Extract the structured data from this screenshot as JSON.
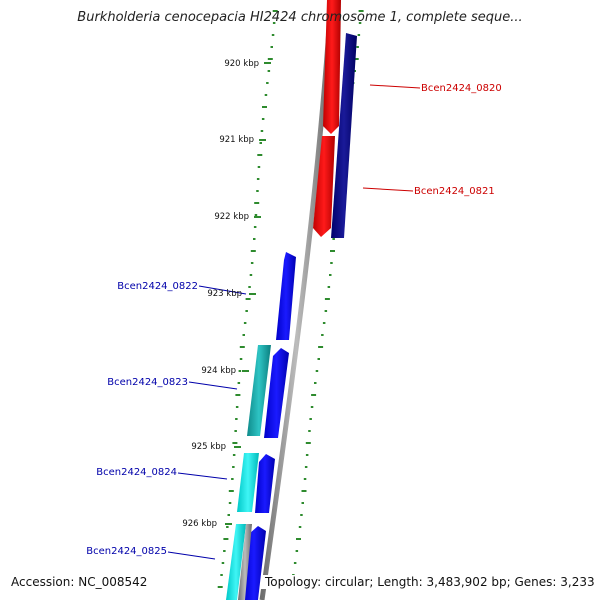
{
  "title": "Burkholderia cenocepacia HI2424 chromosome 1, complete seque...",
  "accession": "Accession: NC_008542",
  "summary": "Topology: circular; Length: 3,483,902 bp; Genes: 3,233",
  "ticks": [
    {
      "label": "920 kbp"
    },
    {
      "label": "921 kbp"
    },
    {
      "label": "922 kbp"
    },
    {
      "label": "923 kbp"
    },
    {
      "label": "924 kbp"
    },
    {
      "label": "925 kbp"
    },
    {
      "label": "926 kbp"
    }
  ],
  "genes": [
    {
      "label": "Bcen2424_0820",
      "color": "#cc0000"
    },
    {
      "label": "Bcen2424_0821",
      "color": "#cc0000"
    },
    {
      "label": "Bcen2424_0822",
      "color": "#0000aa"
    },
    {
      "label": "Bcen2424_0823",
      "color": "#0000aa"
    },
    {
      "label": "Bcen2424_0824",
      "color": "#0000aa"
    },
    {
      "label": "Bcen2424_0825",
      "color": "#0000aa"
    }
  ],
  "colors": {
    "forward_cds": "#ff0000",
    "reverse_cds": "#0000ff",
    "dark_navy": "#000080",
    "cyan": "#00e5e5",
    "teal": "#1aa9a9",
    "backbone": "#8a8a8a",
    "gc_dots": "#2e8b2e"
  }
}
